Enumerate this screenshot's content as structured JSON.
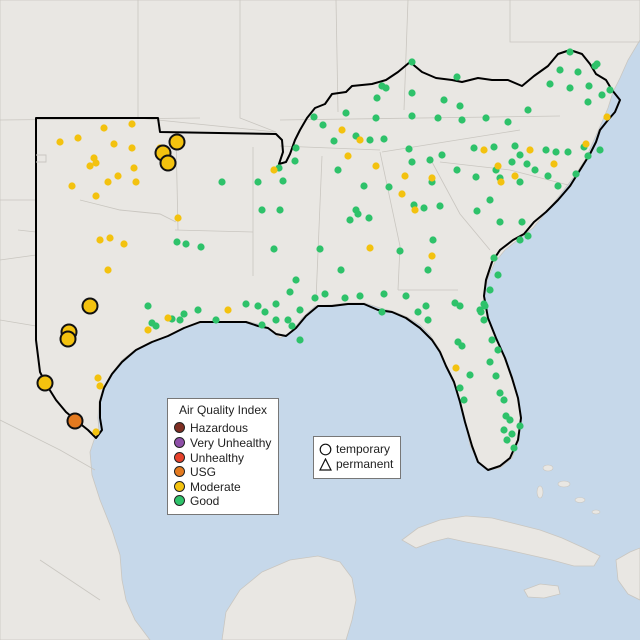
{
  "colors": {
    "water": "#c6d8ea",
    "land": "#e9e7e3",
    "hazardous": "#7e2e22",
    "very_unhealthy": "#8e4fa8",
    "unhealthy": "#e6412b",
    "usg": "#e47a1f",
    "moderate": "#f3c20f",
    "good": "#2ec26a",
    "region_outline": "#000000"
  },
  "aqi_legend": {
    "title": "Air Quality Index",
    "items": [
      {
        "label": "Hazardous",
        "color": "#7e2e22"
      },
      {
        "label": "Very Unhealthy",
        "color": "#8e4fa8"
      },
      {
        "label": "Unhealthy",
        "color": "#e6412b"
      },
      {
        "label": "USG",
        "color": "#e47a1f"
      },
      {
        "label": "Moderate",
        "color": "#f3c20f"
      },
      {
        "label": "Good",
        "color": "#2ec26a"
      }
    ]
  },
  "shape_legend": {
    "items": [
      {
        "label": "temporary",
        "icon": "circle-icon"
      },
      {
        "label": "permanent",
        "icon": "triangle-icon"
      }
    ]
  },
  "monitors": {
    "good_count_note": "",
    "categories": [
      "Good",
      "Moderate",
      "USG"
    ]
  }
}
